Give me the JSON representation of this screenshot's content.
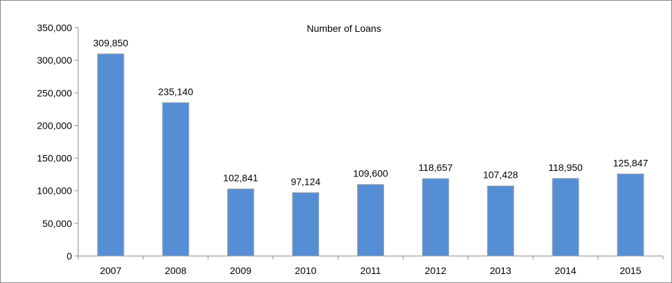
{
  "chart_data": {
    "type": "bar",
    "title": "Number of Loans",
    "xlabel": "",
    "ylabel": "",
    "categories": [
      "2007",
      "2008",
      "2009",
      "2010",
      "2011",
      "2012",
      "2013",
      "2014",
      "2015"
    ],
    "values": [
      309850,
      235140,
      102841,
      97124,
      109600,
      118657,
      107428,
      118950,
      125847
    ],
    "data_labels": [
      "309,850",
      "235,140",
      "102,841",
      "97,124",
      "109,600",
      "118,657",
      "107,428",
      "118,950",
      "125,847"
    ],
    "ylim": [
      0,
      350000
    ],
    "yticks": [
      0,
      50000,
      100000,
      150000,
      200000,
      250000,
      300000,
      350000
    ],
    "ytick_labels": [
      "0",
      "50,000",
      "100,000",
      "150,000",
      "200,000",
      "250,000",
      "300,000",
      "350,000"
    ],
    "grid": false,
    "legend": "none",
    "colors": {
      "bar_fill": "#558ED5",
      "bar_stroke": "#A6A6A6",
      "axis": "#868686",
      "border": "#868686"
    }
  }
}
